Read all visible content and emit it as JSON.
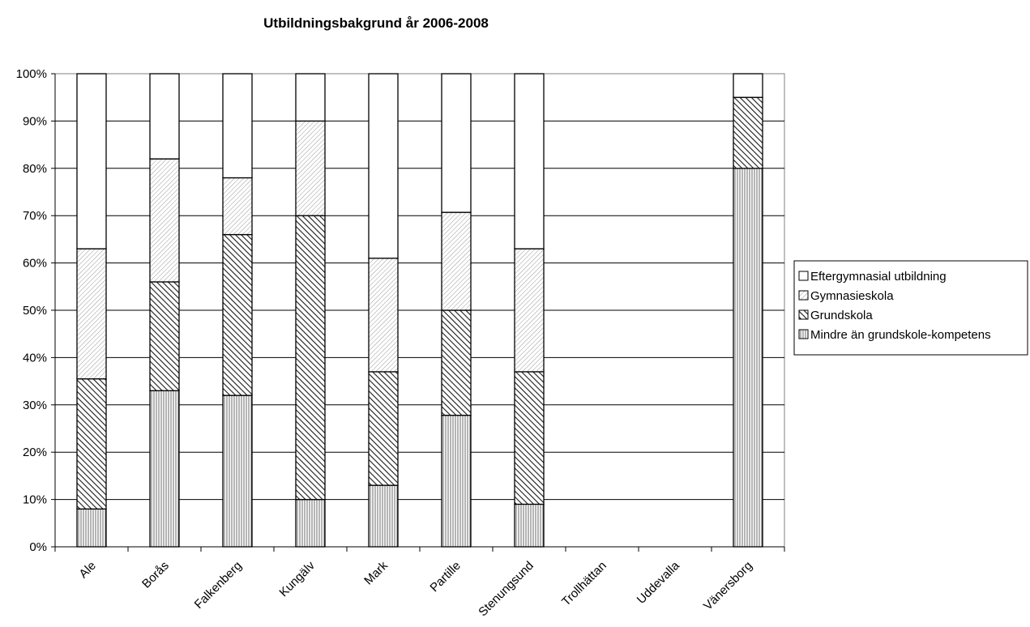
{
  "chart_data": {
    "type": "bar",
    "stacked": true,
    "percent": true,
    "title": "Utbildningsbakgrund år 2006-2008",
    "xlabel": "",
    "ylabel": "",
    "ylim": [
      0,
      100
    ],
    "yticks": [
      "0%",
      "10%",
      "20%",
      "30%",
      "40%",
      "50%",
      "60%",
      "70%",
      "80%",
      "90%",
      "100%"
    ],
    "grid": true,
    "legend_position": "right",
    "categories": [
      "Ale",
      "Borås",
      "Falkenberg",
      "Kungälv",
      "Mark",
      "Partille",
      "Stenungsund",
      "Trollhättan",
      "Uddevalla",
      "Vänersborg"
    ],
    "series": [
      {
        "name": "Mindre än grundskole-kompetens",
        "pattern": "vertical-lines",
        "values": [
          8,
          33,
          32,
          10,
          13,
          27.8,
          9,
          0,
          0,
          80
        ]
      },
      {
        "name": "Grundskola",
        "pattern": "dense-diagonal",
        "values": [
          27.5,
          23,
          34,
          60,
          24,
          22.2,
          28,
          0,
          0,
          15
        ]
      },
      {
        "name": "Gymnasieskola",
        "pattern": "light-diagonal",
        "values": [
          27.5,
          26,
          12,
          20,
          24,
          20.7,
          26,
          0,
          0,
          0
        ]
      },
      {
        "name": "Eftergymnasial utbildning",
        "pattern": "blank",
        "values": [
          37,
          18,
          22,
          10,
          39,
          29.3,
          37,
          0,
          0,
          5
        ]
      }
    ]
  }
}
